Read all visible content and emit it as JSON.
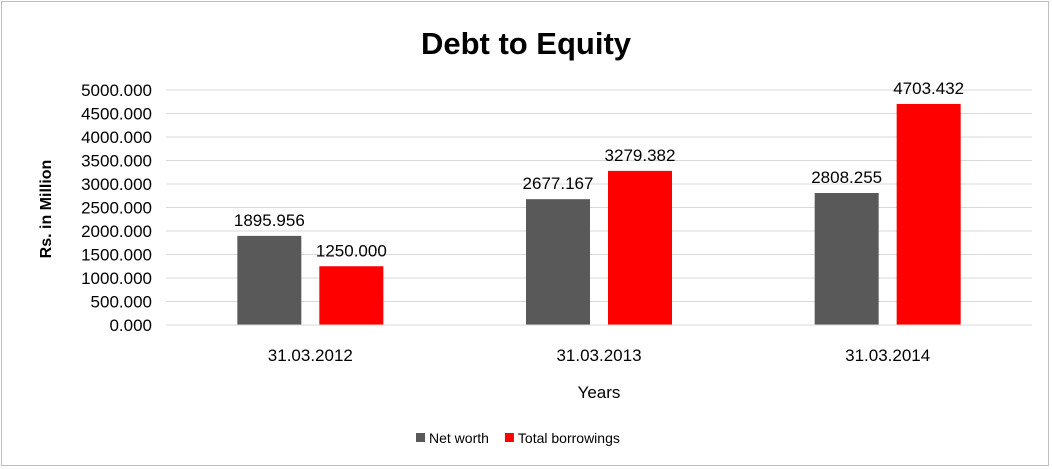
{
  "chart_data": {
    "type": "bar",
    "title": "Debt to Equity",
    "xlabel": "Years",
    "ylabel": "Rs. in Million",
    "categories": [
      "31.03.2012",
      "31.03.2013",
      "31.03.2014"
    ],
    "series": [
      {
        "name": "Net worth",
        "values": [
          1895.956,
          2677.167,
          2808.255
        ],
        "labels": [
          "1895.956",
          "2677.167",
          "2808.255"
        ],
        "color": "#595959"
      },
      {
        "name": "Total borrowings",
        "values": [
          1250.0,
          3279.382,
          4703.432
        ],
        "labels": [
          "1250.000",
          "3279.382",
          "4703.432"
        ],
        "color": "#ff0000"
      }
    ],
    "ylim": [
      0,
      5000
    ],
    "yticks": [
      "0.000",
      "500.000",
      "1000.000",
      "1500.000",
      "2000.000",
      "2500.000",
      "3000.000",
      "3500.000",
      "4000.000",
      "4500.000",
      "5000.000"
    ],
    "grid": true,
    "legend_position": "bottom",
    "gridline_color": "#d9d9d9"
  }
}
